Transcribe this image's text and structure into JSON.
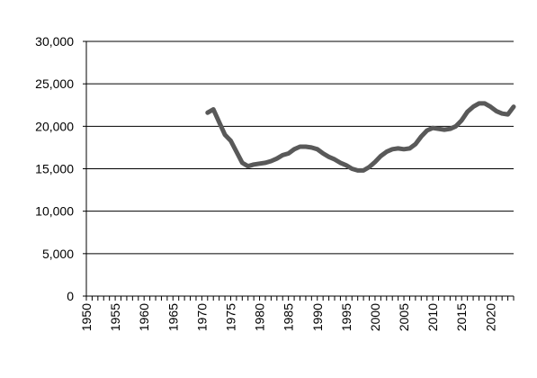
{
  "chart_data": {
    "type": "line",
    "title": "",
    "xlabel": "",
    "ylabel": "",
    "xlim": [
      1950,
      2024
    ],
    "ylim": [
      0,
      30000
    ],
    "y_ticks": [
      0,
      5000,
      10000,
      15000,
      20000,
      25000,
      30000
    ],
    "y_tick_labels": [
      "0",
      "5,000",
      "10,000",
      "15,000",
      "20,000",
      "25,000",
      "30,000"
    ],
    "x_tick_labels": [
      "1950",
      "1955",
      "1960",
      "1965",
      "1970",
      "1975",
      "1980",
      "1985",
      "1990",
      "1995",
      "2000",
      "2005",
      "2010",
      "2015",
      "2020"
    ],
    "grid": "horizontal",
    "legend": "none",
    "line_color": "#595959",
    "series": [
      {
        "x": [
          1971,
          1972,
          1973,
          1974,
          1975,
          1976,
          1977,
          1978,
          1979,
          1980,
          1981,
          1982,
          1983,
          1984,
          1985,
          1986,
          1987,
          1988,
          1989,
          1990,
          1991,
          1992,
          1993,
          1994,
          1995,
          1996,
          1997,
          1998,
          1999,
          2000,
          2001,
          2002,
          2003,
          2004,
          2005,
          2006,
          2007,
          2008,
          2009,
          2010,
          2011,
          2012,
          2013,
          2014,
          2015,
          2016,
          2017,
          2018,
          2019,
          2020,
          2021,
          2022,
          2023,
          2024
        ],
        "values": [
          21600,
          22000,
          20500,
          19000,
          18300,
          17000,
          15700,
          15300,
          15500,
          15600,
          15700,
          15900,
          16200,
          16600,
          16800,
          17300,
          17600,
          17600,
          17500,
          17300,
          16800,
          16400,
          16100,
          15700,
          15400,
          15000,
          14800,
          14800,
          15200,
          15800,
          16500,
          17000,
          17300,
          17400,
          17300,
          17400,
          17900,
          18800,
          19500,
          19800,
          19700,
          19600,
          19700,
          20000,
          20700,
          21700,
          22300,
          22700,
          22700,
          22300,
          21800,
          21500,
          21400,
          22300
        ]
      }
    ]
  }
}
